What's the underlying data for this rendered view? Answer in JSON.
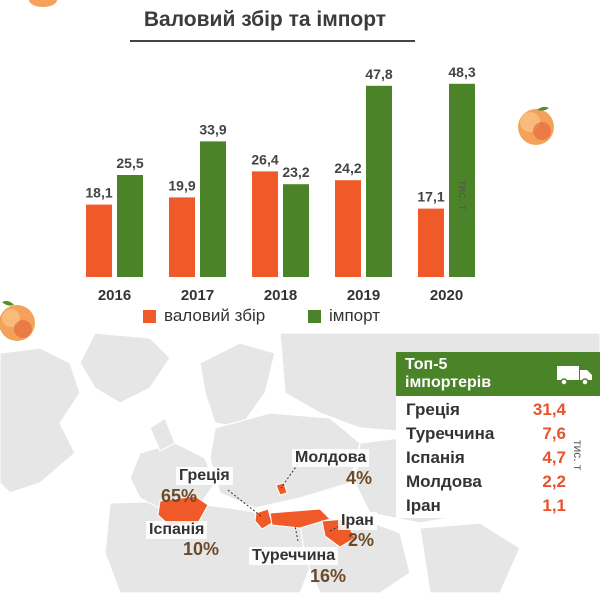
{
  "chart_data": {
    "type": "bar",
    "title": "Валовий збір та імпорт",
    "categories": [
      "2016",
      "2017",
      "2018",
      "2019",
      "2020"
    ],
    "series": [
      {
        "name": "валовий збір",
        "values": [
          "18,1",
          "19,9",
          "26,4",
          "24,2",
          "17,1"
        ],
        "numeric": [
          18.1,
          19.9,
          26.4,
          24.2,
          17.1
        ],
        "color": "#f05a28"
      },
      {
        "name": "імпорт",
        "values": [
          "25,5",
          "33,9",
          "23,2",
          "47,8",
          "48,3"
        ],
        "numeric": [
          25.5,
          33.9,
          23.2,
          47.8,
          48.3
        ],
        "color": "#4b8329"
      }
    ],
    "ylabel": "тис. т",
    "ylim": [
      0,
      50
    ],
    "grid": false,
    "legend": "bottom"
  },
  "top5": {
    "title_line1": "Топ-5",
    "title_line2": "імпортерів",
    "unit": "тис. т",
    "icon": "truck-icon",
    "rows": [
      {
        "country": "Греція",
        "value": "31,4"
      },
      {
        "country": "Туреччина",
        "value": "7,6"
      },
      {
        "country": "Іспанія",
        "value": "4,7"
      },
      {
        "country": "Молдова",
        "value": "2,2"
      },
      {
        "country": "Іран",
        "value": "1,1"
      }
    ]
  },
  "map_labels": {
    "greece": {
      "name": "Греція",
      "pct": "65%"
    },
    "spain": {
      "name": "Іспанія",
      "pct": "10%"
    },
    "moldova": {
      "name": "Молдова",
      "pct": "4%"
    },
    "iran": {
      "name": "Іран",
      "pct": "2%"
    },
    "turkey": {
      "name": "Туреччина",
      "pct": "16%"
    }
  },
  "colors": {
    "harvest": "#f05a28",
    "import": "#4b8329",
    "map_land": "#e6e6e6",
    "map_highlight": "#f05a28"
  }
}
